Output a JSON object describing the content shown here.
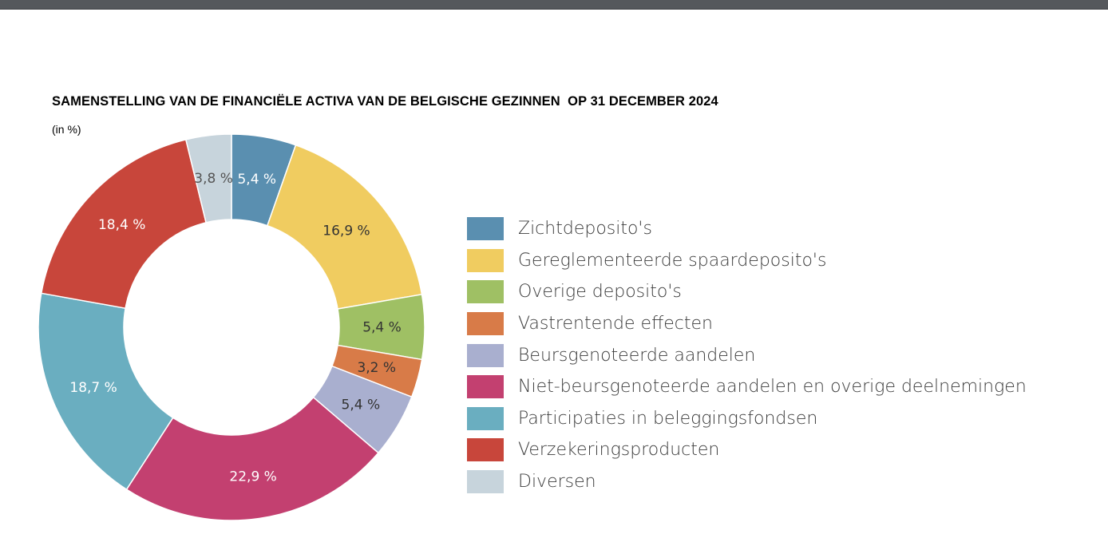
{
  "chart_data": {
    "type": "pie",
    "title": "SAMENSTELLING VAN DE FINANCIËLE ACTIVA VAN DE BELGISCHE GEZINNEN  OP 31 DECEMBER 2024",
    "subtitle": "(in %)",
    "legend_position": "right",
    "slices": [
      {
        "label": "Zichtdeposito's",
        "value": 5.4,
        "value_label": "5,4 %",
        "color": "#5a8fb0",
        "text_color": "#ffffff"
      },
      {
        "label": "Gereglementeerde spaardeposito's",
        "value": 16.9,
        "value_label": "16,9 %",
        "color": "#f0cc60",
        "text_color": "#333333"
      },
      {
        "label": "Overige deposito's",
        "value": 5.4,
        "value_label": "5,4 %",
        "color": "#9fc064",
        "text_color": "#333333"
      },
      {
        "label": "Vastrentende effecten",
        "value": 3.2,
        "value_label": "3,2 %",
        "color": "#d87b48",
        "text_color": "#333333"
      },
      {
        "label": "Beursgenoteerde aandelen",
        "value": 5.4,
        "value_label": "5,4 %",
        "color": "#a9afcf",
        "text_color": "#333333"
      },
      {
        "label": "Niet-beursgenoteerde aandelen en overige deelnemingen",
        "value": 22.9,
        "value_label": "22,9 %",
        "color": "#c34070",
        "text_color": "#ffffff"
      },
      {
        "label": "Participaties in beleggingsfondsen",
        "value": 18.7,
        "value_label": "18,7 %",
        "color": "#6aaec0",
        "text_color": "#ffffff"
      },
      {
        "label": "Verzekeringsproducten",
        "value": 18.4,
        "value_label": "18,4 %",
        "color": "#c8463b",
        "text_color": "#ffffff"
      },
      {
        "label": "Diversen",
        "value": 3.8,
        "value_label": "3,8 %",
        "color": "#c7d4dc",
        "text_color": "#555555"
      }
    ]
  }
}
